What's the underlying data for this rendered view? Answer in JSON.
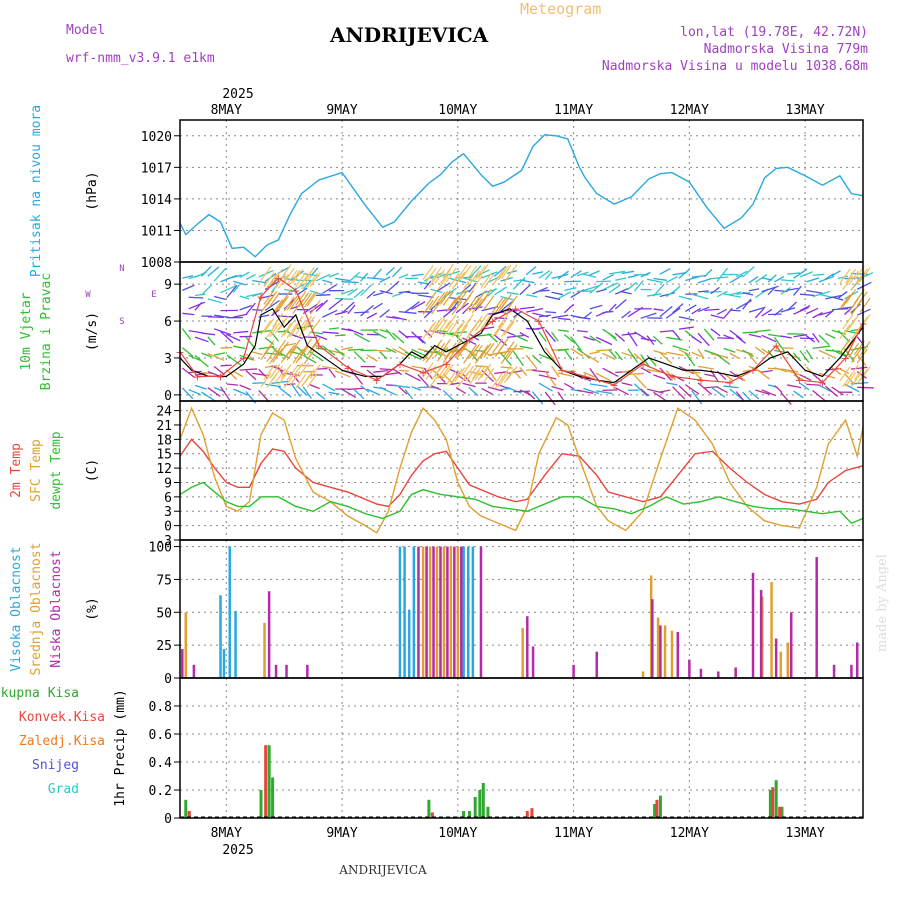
{
  "header": {
    "model_label": "Model",
    "model_name": "wrf-nmm_v3.9.1  e1km",
    "meteogram_label": "Meteogram",
    "station": "ANDRIJEVICA",
    "lonlat": "lon,lat (19.78E, 42.72N)",
    "elevation": "Nadmorska Visina 779m",
    "model_elevation": "Nadmorska Visina u modelu 1038.68m"
  },
  "footer": {
    "station": "ANDRIJEVICA",
    "watermark": "made by Angel"
  },
  "colors": {
    "pressure": "#29a8e0",
    "temp2m": "#e8463c",
    "sfc": "#e0a030",
    "dewpt": "#2ec02e",
    "high_cloud": "#29a8e0",
    "mid_cloud": "#e0a030",
    "low_cloud": "#b42aa8",
    "total_precip": "#2ea82e",
    "conv_precip": "#e8463c",
    "frozen_precip": "#f07a1e",
    "snow": "#5050e0",
    "grad": "#30c8c8"
  },
  "time_axis": {
    "year": "2025",
    "days": [
      "8MAY",
      "9MAY",
      "10MAY",
      "11MAY",
      "12MAY",
      "13MAY"
    ],
    "start_day": 7.6,
    "end_day": 13.5
  },
  "chart_data": [
    {
      "type": "line",
      "panel": "pressure",
      "ylabel_lines": [
        "Pritisak na nivou mora"
      ],
      "unit": "(hPa)",
      "ylim": [
        1008,
        1021.5
      ],
      "yticks": [
        1008,
        1011,
        1014,
        1017,
        1020
      ],
      "grid": true,
      "series": [
        {
          "x": [
            7.6,
            7.65,
            7.75,
            7.85,
            7.95,
            8.05,
            8.15,
            8.25,
            8.35,
            8.45,
            8.55,
            8.65,
            8.8,
            9.0,
            9.2,
            9.35,
            9.45,
            9.6,
            9.75,
            9.85,
            9.95,
            10.05,
            10.2,
            10.3,
            10.4,
            10.55,
            10.65,
            10.75,
            10.85,
            10.95,
            11.05,
            11.1,
            11.2,
            11.35,
            11.5,
            11.65,
            11.75,
            11.85,
            12.0,
            12.15,
            12.3,
            12.45,
            12.55,
            12.65,
            12.75,
            12.85,
            13.0,
            13.15,
            13.3,
            13.4,
            13.5
          ],
          "values": [
            1011.7,
            1010.6,
            1011.6,
            1012.5,
            1011.8,
            1009.3,
            1009.4,
            1008.5,
            1009.6,
            1010.1,
            1012.5,
            1014.5,
            1015.8,
            1016.5,
            1013.4,
            1011.3,
            1011.8,
            1013.8,
            1015.5,
            1016.3,
            1017.5,
            1018.3,
            1016.3,
            1015.2,
            1015.6,
            1016.7,
            1019.0,
            1020.1,
            1020.0,
            1019.7,
            1017.0,
            1016.0,
            1014.5,
            1013.5,
            1014.2,
            1015.9,
            1016.4,
            1016.5,
            1015.6,
            1013.2,
            1011.2,
            1012.2,
            1013.5,
            1016.0,
            1016.9,
            1017.0,
            1016.2,
            1015.3,
            1016.2,
            1014.5,
            1014.3
          ]
        }
      ]
    },
    {
      "type": "line",
      "panel": "wind",
      "ylabel_lines": [
        "10m Vjetar",
        "Brzina i Pravac"
      ],
      "unit": "(m/s)",
      "compass": [
        "N",
        "W",
        "E",
        "S"
      ],
      "ylim": [
        -0.5,
        10.8
      ],
      "yticks": [
        0,
        3,
        6,
        9
      ],
      "grid": true,
      "series": [
        {
          "name": "speed",
          "x": [
            7.6,
            7.7,
            7.85,
            8.0,
            8.15,
            8.25,
            8.3,
            8.4,
            8.5,
            8.6,
            8.7,
            8.85,
            9.0,
            9.2,
            9.35,
            9.5,
            9.6,
            9.7,
            9.8,
            9.9,
            10.0,
            10.1,
            10.2,
            10.3,
            10.45,
            10.6,
            10.75,
            10.9,
            11.05,
            11.2,
            11.35,
            11.5,
            11.65,
            11.8,
            11.95,
            12.1,
            12.25,
            12.4,
            12.55,
            12.7,
            12.85,
            13.0,
            13.15,
            13.3,
            13.5
          ],
          "values": [
            3,
            2,
            1.5,
            1.5,
            2.5,
            4,
            6.5,
            7,
            5.5,
            6.5,
            4,
            3,
            2,
            1.5,
            1.5,
            2.5,
            3.5,
            3,
            4,
            3.5,
            4,
            4.5,
            5,
            6.5,
            7,
            6,
            3.5,
            2,
            1.5,
            1.2,
            1,
            2,
            3,
            2.5,
            2,
            2,
            1.8,
            1.5,
            2,
            3,
            3.5,
            2,
            1.5,
            3,
            5.5
          ]
        },
        {
          "name": "gust",
          "x": [
            7.6,
            7.75,
            7.95,
            8.15,
            8.3,
            8.45,
            8.6,
            8.8,
            9.05,
            9.3,
            9.5,
            9.7,
            9.9,
            10.1,
            10.3,
            10.5,
            10.7,
            10.9,
            11.1,
            11.35,
            11.6,
            11.85,
            12.1,
            12.35,
            12.55,
            12.75,
            12.95,
            13.15,
            13.35,
            13.5
          ],
          "values": [
            3.5,
            1.5,
            1.5,
            3,
            8,
            9.5,
            8.5,
            4,
            2.2,
            1.2,
            2.5,
            1.8,
            2.5,
            4.5,
            6,
            7,
            6,
            2,
            1.5,
            0.8,
            2.5,
            1.5,
            1.2,
            1,
            2,
            4,
            1.2,
            1,
            3,
            5.8
          ]
        }
      ]
    },
    {
      "type": "line",
      "panel": "temperature",
      "ylabel_lines": [
        "2m Temp",
        "SFC Temp",
        "dewpt Temp"
      ],
      "unit": "(C)",
      "ylim": [
        -3,
        26
      ],
      "yticks": [
        -3,
        0,
        3,
        6,
        9,
        12,
        15,
        18,
        21,
        24
      ],
      "grid": true,
      "series": [
        {
          "name": "2m Temp",
          "x": [
            7.6,
            7.7,
            7.8,
            7.9,
            8.0,
            8.1,
            8.2,
            8.3,
            8.4,
            8.5,
            8.6,
            8.75,
            8.9,
            9.05,
            9.2,
            9.3,
            9.4,
            9.5,
            9.6,
            9.7,
            9.8,
            9.9,
            10.0,
            10.1,
            10.2,
            10.35,
            10.5,
            10.6,
            10.75,
            10.9,
            11.05,
            11.2,
            11.3,
            11.45,
            11.6,
            11.75,
            11.9,
            12.05,
            12.2,
            12.35,
            12.5,
            12.65,
            12.8,
            12.95,
            13.1,
            13.2,
            13.35,
            13.5
          ],
          "values": [
            14.5,
            18,
            15.5,
            12,
            9,
            8,
            8,
            13,
            16,
            15.5,
            12,
            9,
            8,
            7,
            5.5,
            4.5,
            4,
            6.5,
            10.5,
            13.5,
            15,
            15.5,
            12,
            8.5,
            7.5,
            6,
            5,
            5.5,
            10.5,
            15,
            14.5,
            10.5,
            7,
            6,
            5,
            6,
            10.5,
            15,
            15.5,
            12,
            9,
            6.5,
            5,
            4.5,
            5.5,
            9,
            11.5,
            12.5
          ]
        },
        {
          "name": "SFC Temp",
          "x": [
            7.6,
            7.7,
            7.8,
            7.9,
            8.0,
            8.1,
            8.2,
            8.3,
            8.4,
            8.5,
            8.6,
            8.75,
            8.9,
            9.05,
            9.2,
            9.3,
            9.4,
            9.5,
            9.6,
            9.7,
            9.8,
            9.9,
            10.0,
            10.1,
            10.2,
            10.35,
            10.5,
            10.6,
            10.7,
            10.85,
            10.95,
            11.05,
            11.2,
            11.3,
            11.45,
            11.6,
            11.75,
            11.9,
            12.05,
            12.2,
            12.35,
            12.5,
            12.65,
            12.8,
            12.95,
            13.1,
            13.2,
            13.35,
            13.45,
            13.5
          ],
          "values": [
            18,
            24.5,
            19,
            10,
            4,
            3,
            5,
            19,
            23.5,
            22,
            14,
            7,
            5,
            2,
            0,
            -1.5,
            3,
            12,
            19.5,
            24.5,
            22,
            18,
            9,
            4,
            2,
            0.5,
            -1,
            4,
            15,
            22.5,
            21,
            14,
            4,
            1,
            -1,
            3,
            14,
            24.5,
            22,
            17,
            9,
            4,
            1,
            0,
            -0.5,
            8,
            17,
            22,
            14.5,
            20.5
          ]
        },
        {
          "name": "dewpt Temp",
          "x": [
            7.6,
            7.7,
            7.8,
            7.9,
            8.0,
            8.1,
            8.2,
            8.3,
            8.45,
            8.6,
            8.75,
            8.9,
            9.05,
            9.2,
            9.35,
            9.5,
            9.6,
            9.7,
            9.85,
            10.0,
            10.15,
            10.3,
            10.45,
            10.6,
            10.75,
            10.9,
            11.05,
            11.2,
            11.35,
            11.5,
            11.65,
            11.8,
            11.95,
            12.1,
            12.25,
            12.4,
            12.55,
            12.7,
            12.85,
            13.0,
            13.15,
            13.3,
            13.4,
            13.5
          ],
          "values": [
            6.5,
            8,
            9,
            7,
            5,
            4,
            4,
            6,
            6,
            4,
            3,
            5,
            4,
            2.5,
            1.5,
            3,
            6.5,
            7.5,
            6.5,
            6,
            5.5,
            4,
            3.5,
            3,
            4.5,
            6,
            6,
            4,
            3.5,
            2.5,
            4,
            6,
            4.5,
            5,
            6,
            5,
            4,
            3.5,
            3.5,
            3,
            2.5,
            3,
            0.5,
            1.5
          ]
        }
      ]
    },
    {
      "type": "bar",
      "panel": "cloud",
      "ylabel_lines": [
        "Visoka Oblacnost",
        "Srednja Oblacnost",
        "Niska Oblacnost"
      ],
      "unit": "(%)",
      "ylim": [
        0,
        105
      ],
      "yticks": [
        0,
        25,
        50,
        75,
        100
      ],
      "grid": true,
      "series": [
        {
          "name": "Visoka Oblacnost",
          "bars": [
            [
              7.95,
              63
            ],
            [
              7.98,
              22
            ],
            [
              8.03,
              100
            ],
            [
              8.08,
              51
            ],
            [
              9.5,
              100
            ],
            [
              9.54,
              100
            ],
            [
              9.58,
              52
            ],
            [
              9.62,
              100
            ],
            [
              10.05,
              100
            ],
            [
              10.09,
              100
            ],
            [
              10.13,
              100
            ]
          ]
        },
        {
          "name": "Srednja Oblacnost",
          "bars": [
            [
              7.65,
              50
            ],
            [
              8.33,
              42
            ],
            [
              9.7,
              100
            ],
            [
              9.76,
              100
            ],
            [
              9.82,
              100
            ],
            [
              9.88,
              100
            ],
            [
              9.94,
              100
            ],
            [
              10.0,
              100
            ],
            [
              10.56,
              38
            ],
            [
              11.6,
              5
            ],
            [
              11.67,
              78
            ],
            [
              11.73,
              46
            ],
            [
              11.79,
              40
            ],
            [
              11.85,
              36
            ],
            [
              12.4,
              8
            ],
            [
              12.63,
              62
            ],
            [
              12.71,
              73
            ],
            [
              12.79,
              20
            ],
            [
              12.85,
              27
            ]
          ]
        },
        {
          "name": "Niska Oblacnost",
          "bars": [
            [
              7.62,
              22
            ],
            [
              7.72,
              10
            ],
            [
              8.37,
              66
            ],
            [
              8.43,
              10
            ],
            [
              8.52,
              10
            ],
            [
              8.7,
              10
            ],
            [
              9.66,
              100
            ],
            [
              9.73,
              100
            ],
            [
              9.79,
              100
            ],
            [
              9.85,
              100
            ],
            [
              9.91,
              100
            ],
            [
              9.97,
              100
            ],
            [
              10.03,
              100
            ],
            [
              10.2,
              100
            ],
            [
              10.6,
              47
            ],
            [
              10.65,
              24
            ],
            [
              11.0,
              10
            ],
            [
              11.2,
              20
            ],
            [
              11.68,
              60
            ],
            [
              11.75,
              40
            ],
            [
              11.9,
              35
            ],
            [
              12.0,
              14
            ],
            [
              12.1,
              7
            ],
            [
              12.25,
              5
            ],
            [
              12.4,
              8
            ],
            [
              12.55,
              80
            ],
            [
              12.62,
              67
            ],
            [
              12.75,
              30
            ],
            [
              12.88,
              50
            ],
            [
              13.1,
              92
            ],
            [
              13.25,
              10
            ],
            [
              13.4,
              10
            ],
            [
              13.45,
              27
            ]
          ]
        }
      ]
    },
    {
      "type": "bar",
      "panel": "precipitation",
      "legend": [
        "Ukupna Kisa",
        "Konvek.Kisa",
        "Zaledj.Kisa",
        "Snijeg",
        "Grad"
      ],
      "unit": "1hr Precip (mm)",
      "ylim": [
        0,
        1.0
      ],
      "yticks": [
        0,
        0.2,
        0.4,
        0.6,
        0.8
      ],
      "grid": true,
      "series": [
        {
          "name": "Ukupna Kisa",
          "bars": [
            [
              7.65,
              0.13
            ],
            [
              8.3,
              0.2
            ],
            [
              8.37,
              0.52
            ],
            [
              8.4,
              0.29
            ],
            [
              9.75,
              0.13
            ],
            [
              10.05,
              0.05
            ],
            [
              10.1,
              0.05
            ],
            [
              10.15,
              0.15
            ],
            [
              10.19,
              0.2
            ],
            [
              10.22,
              0.25
            ],
            [
              10.26,
              0.08
            ],
            [
              11.7,
              0.1
            ],
            [
              11.75,
              0.16
            ],
            [
              12.7,
              0.2
            ],
            [
              12.75,
              0.27
            ],
            [
              12.8,
              0.08
            ]
          ]
        },
        {
          "name": "Konvek.Kisa",
          "bars": [
            [
              7.68,
              0.05
            ],
            [
              8.34,
              0.52
            ],
            [
              9.78,
              0.04
            ],
            [
              10.6,
              0.05
            ],
            [
              10.64,
              0.07
            ],
            [
              11.72,
              0.13
            ],
            [
              12.72,
              0.22
            ],
            [
              12.78,
              0.08
            ]
          ]
        }
      ]
    }
  ]
}
